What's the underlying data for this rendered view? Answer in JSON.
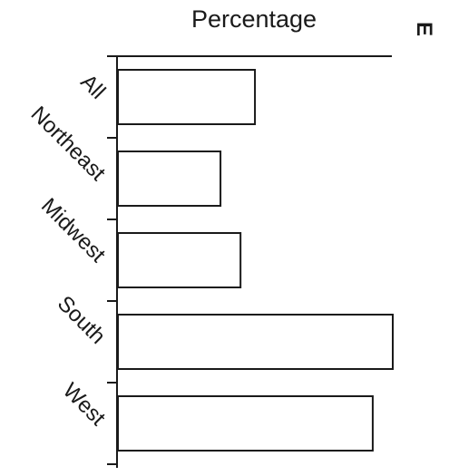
{
  "chart_data": {
    "type": "bar",
    "orientation": "horizontal",
    "title": "Percentage",
    "xlabel": "Percentage",
    "ylabel": "",
    "categories": [
      "All",
      "Northeast",
      "Midwest",
      "South",
      "West"
    ],
    "values": [
      17.1,
      12.8,
      15.3,
      34.3,
      31.8
    ],
    "xlim": [
      0,
      34.3
    ],
    "grid": false,
    "legend": "none",
    "colors": {
      "bar_fill": "#ffffff",
      "bar_stroke": "#1a1a1a",
      "axis": "#1a1a1a"
    }
  },
  "corner_badge": "E"
}
